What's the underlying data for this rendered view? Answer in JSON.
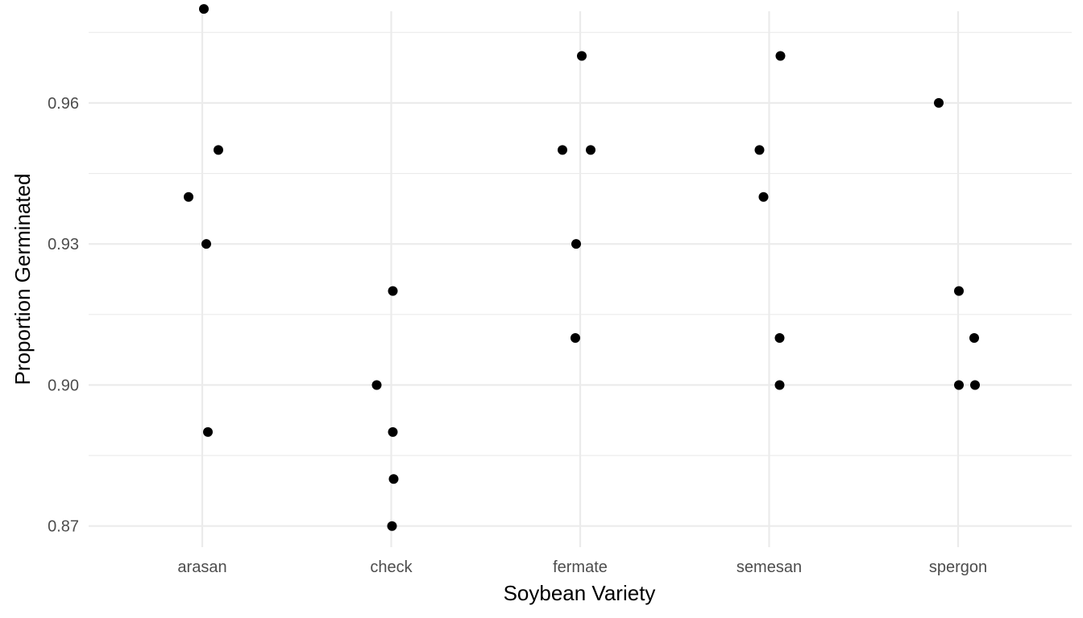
{
  "chart_data": {
    "type": "scatter",
    "title": "",
    "xlabel": "Soybean Variety",
    "ylabel": "Proportion Germinated",
    "categories": [
      "arasan",
      "check",
      "fermate",
      "semesan",
      "spergon"
    ],
    "ylim": [
      0.8655,
      0.9795
    ],
    "y_ticks": [
      0.87,
      0.9,
      0.93,
      0.96
    ],
    "y_tick_labels": [
      "0.87",
      "0.90",
      "0.93",
      "0.96"
    ],
    "y_minor_ticks": [
      0.885,
      0.915,
      0.945,
      0.975
    ],
    "grid": true,
    "jitter": true,
    "points": [
      {
        "category": "arasan",
        "y": 0.98
      },
      {
        "category": "arasan",
        "y": 0.95
      },
      {
        "category": "arasan",
        "y": 0.94
      },
      {
        "category": "arasan",
        "y": 0.93
      },
      {
        "category": "arasan",
        "y": 0.89
      },
      {
        "category": "check",
        "y": 0.92
      },
      {
        "category": "check",
        "y": 0.9
      },
      {
        "category": "check",
        "y": 0.89
      },
      {
        "category": "check",
        "y": 0.88
      },
      {
        "category": "check",
        "y": 0.87
      },
      {
        "category": "fermate",
        "y": 0.97
      },
      {
        "category": "fermate",
        "y": 0.95
      },
      {
        "category": "fermate",
        "y": 0.95
      },
      {
        "category": "fermate",
        "y": 0.93
      },
      {
        "category": "fermate",
        "y": 0.91
      },
      {
        "category": "semesan",
        "y": 0.97
      },
      {
        "category": "semesan",
        "y": 0.95
      },
      {
        "category": "semesan",
        "y": 0.94
      },
      {
        "category": "semesan",
        "y": 0.91
      },
      {
        "category": "semesan",
        "y": 0.9
      },
      {
        "category": "spergon",
        "y": 0.96
      },
      {
        "category": "spergon",
        "y": 0.92
      },
      {
        "category": "spergon",
        "y": 0.91
      },
      {
        "category": "spergon",
        "y": 0.9
      },
      {
        "category": "spergon",
        "y": 0.9
      }
    ],
    "point_color": "#000000",
    "grid_color": "#ebebeb"
  }
}
